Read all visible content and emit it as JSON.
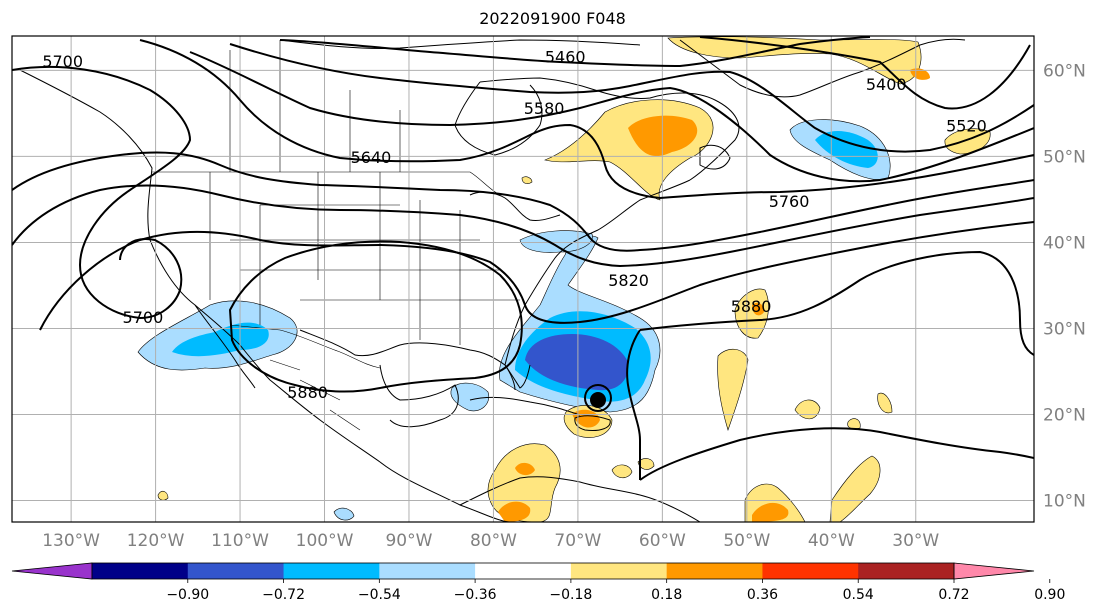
{
  "title": "2022091900 F048",
  "map": {
    "projection": "cylindrical",
    "lon_range": [
      -137,
      -16
    ],
    "lat_range": [
      7.5,
      64
    ]
  },
  "lat_ticks": [
    "10°N",
    "20°N",
    "30°N",
    "40°N",
    "50°N",
    "60°N"
  ],
  "lat_values": [
    10,
    20,
    30,
    40,
    50,
    60
  ],
  "lon_ticks": [
    "130°W",
    "120°W",
    "110°W",
    "100°W",
    "90°W",
    "80°W",
    "70°W",
    "60°W",
    "50°W",
    "40°W",
    "30°W"
  ],
  "lon_values": [
    -130,
    -120,
    -110,
    -100,
    -90,
    -80,
    -70,
    -60,
    -50,
    -40,
    -30
  ],
  "contour_labels": [
    {
      "text": "5700",
      "lon": -131,
      "lat": 61
    },
    {
      "text": "5460",
      "lon": -71.5,
      "lat": 61.5
    },
    {
      "text": "5400",
      "lon": -33.5,
      "lat": 58.3
    },
    {
      "text": "5580",
      "lon": -74,
      "lat": 55.5
    },
    {
      "text": "5520",
      "lon": -24,
      "lat": 53.5
    },
    {
      "text": "5640",
      "lon": -94.5,
      "lat": 49.8
    },
    {
      "text": "5760",
      "lon": -45,
      "lat": 44.7
    },
    {
      "text": "5820",
      "lon": -64,
      "lat": 35.5
    },
    {
      "text": "5880",
      "lon": -49.5,
      "lat": 32.5
    },
    {
      "text": "5700",
      "lon": -121.5,
      "lat": 31.2
    },
    {
      "text": "5880",
      "lon": -102,
      "lat": 22.5
    }
  ],
  "colorbar": {
    "levels": [
      "−0.90",
      "−0.72",
      "−0.54",
      "−0.36",
      "−0.18",
      "0.18",
      "0.36",
      "0.54",
      "0.72",
      "0.90"
    ],
    "colors": [
      "#9933cc",
      "#000088",
      "#3355cc",
      "#00bbff",
      "#aaddff",
      "#ffffff",
      "#ffe680",
      "#ff9900",
      "#ff3300",
      "#aa2222",
      "#ff88aa"
    ],
    "extend": "both"
  },
  "grid": true
}
